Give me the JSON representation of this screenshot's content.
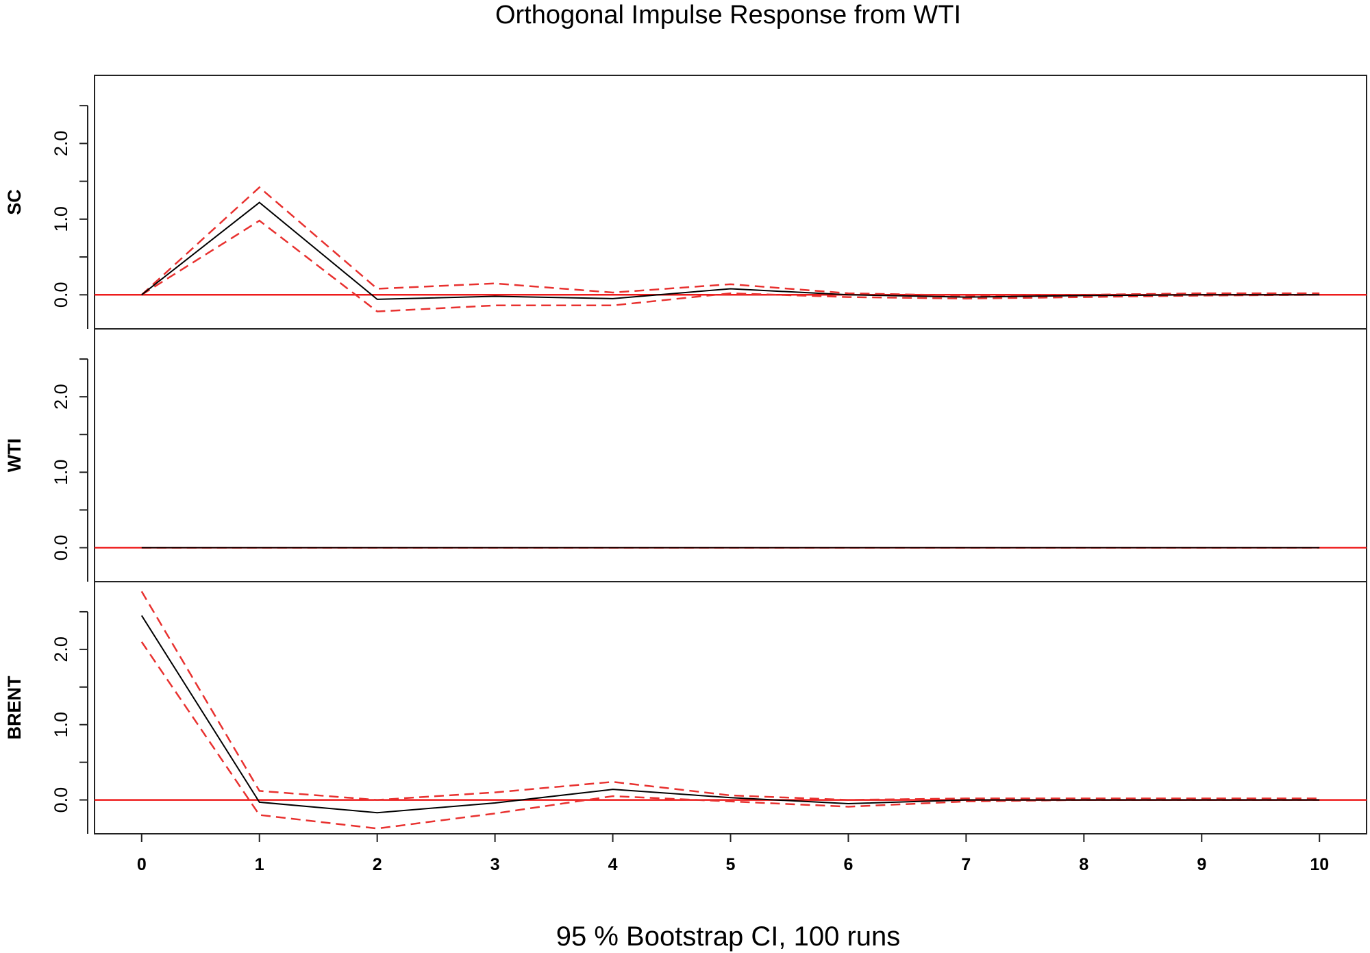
{
  "chart_data": {
    "type": "line",
    "title": "Orthogonal Impulse Response from WTI",
    "xlabel": "95 % Bootstrap CI,  100 runs",
    "x": [
      0,
      1,
      2,
      3,
      4,
      5,
      6,
      7,
      8,
      9,
      10
    ],
    "xlim": [
      -0.4,
      10.4
    ],
    "x_tick_labels": [
      "0",
      "1",
      "2",
      "3",
      "4",
      "5",
      "6",
      "7",
      "8",
      "9",
      "10"
    ],
    "ylim": [
      -0.45,
      2.9
    ],
    "y_ticks": [
      0.0,
      1.0,
      2.0
    ],
    "y_tick_labels": [
      "0.0",
      "1.0",
      "2.0"
    ],
    "y_minor_ticks": [
      -0.5,
      0.5,
      1.5,
      2.5
    ],
    "zero_line_color": "#ee1c1c",
    "response_color": "#000000",
    "ci_color": "#e8312f",
    "panels": [
      {
        "name": "SC",
        "ylabel": "SC",
        "response": [
          0.0,
          1.22,
          -0.06,
          -0.02,
          -0.05,
          0.08,
          0.0,
          -0.03,
          -0.01,
          0.0,
          0.0
        ],
        "lower": [
          0.0,
          0.98,
          -0.22,
          -0.14,
          -0.14,
          0.02,
          -0.03,
          -0.05,
          -0.03,
          -0.01,
          0.0
        ],
        "upper": [
          0.0,
          1.42,
          0.08,
          0.15,
          0.03,
          0.14,
          0.02,
          -0.01,
          0.0,
          0.02,
          0.02
        ]
      },
      {
        "name": "WTI",
        "ylabel": "WTI",
        "response": [
          0.0,
          0.0,
          0.0,
          0.0,
          0.0,
          0.0,
          0.0,
          0.0,
          0.0,
          0.0,
          0.0
        ],
        "lower": [
          0.0,
          0.0,
          0.0,
          0.0,
          0.0,
          0.0,
          0.0,
          0.0,
          0.0,
          0.0,
          0.0
        ],
        "upper": [
          0.0,
          0.0,
          0.0,
          0.0,
          0.0,
          0.0,
          0.0,
          0.0,
          0.0,
          0.0,
          0.0
        ]
      },
      {
        "name": "BRENT",
        "ylabel": "BRENT",
        "response": [
          2.45,
          -0.03,
          -0.17,
          -0.04,
          0.14,
          0.03,
          -0.05,
          0.0,
          0.0,
          0.0,
          0.0
        ],
        "lower": [
          2.1,
          -0.2,
          -0.38,
          -0.18,
          0.05,
          -0.02,
          -0.09,
          -0.02,
          0.0,
          0.0,
          0.0
        ],
        "upper": [
          2.77,
          0.12,
          0.0,
          0.1,
          0.24,
          0.06,
          0.0,
          0.02,
          0.02,
          0.02,
          0.02
        ]
      }
    ]
  }
}
